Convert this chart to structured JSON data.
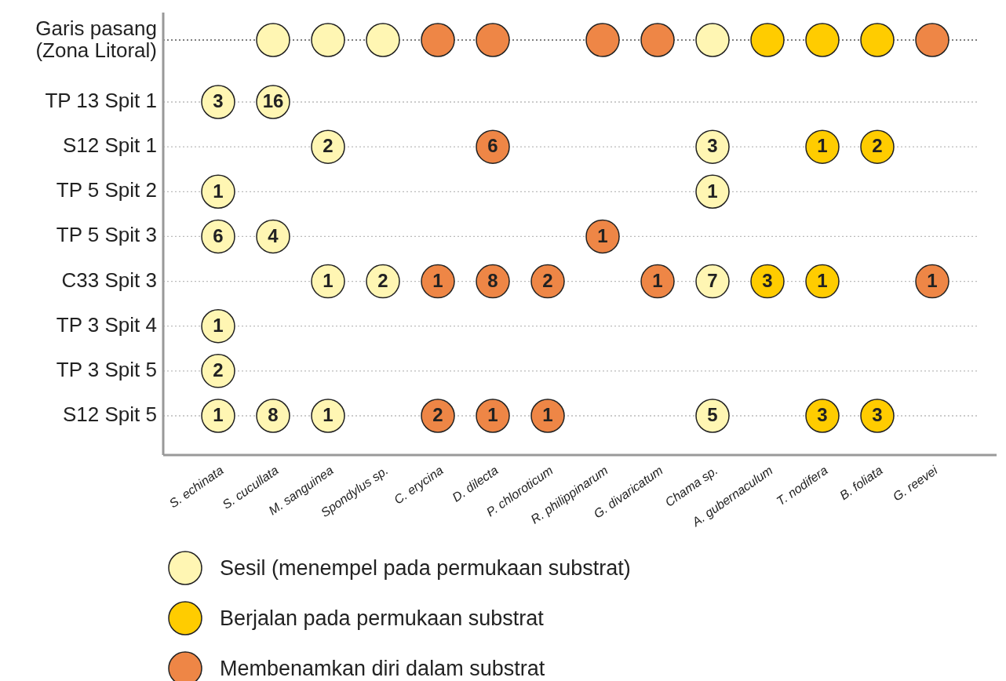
{
  "chart_data": {
    "type": "heatmap",
    "categories": [
      "S. echinata",
      "S. cucullata",
      "M. sanguinea",
      "Spondylus sp.",
      "C. erycina",
      "D. dilecta",
      "P. chloroticum",
      "R. philippinarum",
      "G. divaricatum",
      "Chama sp.",
      "A. gubernaculum",
      "T. nodifera",
      "B. foliata",
      "G. reevei"
    ],
    "y_categories": [
      "Garis pasang\n(Zona Litoral)",
      "TP 13 Spit 1",
      "S12 Spit 1",
      "TP 5 Spit 2",
      "TP 5 Spit 3",
      "C33 Spit 3",
      "TP 3 Spit 4",
      "TP 3 Spit 5",
      "S12 Spit 5"
    ],
    "cells": [
      [
        null,
        null,
        null,
        null,
        null,
        null,
        null,
        null,
        null,
        null,
        null,
        null,
        null,
        null
      ],
      [
        3,
        16,
        null,
        null,
        null,
        null,
        null,
        null,
        null,
        null,
        null,
        null,
        null,
        null
      ],
      [
        null,
        null,
        2,
        null,
        null,
        6,
        null,
        null,
        null,
        3,
        null,
        1,
        2,
        null
      ],
      [
        1,
        null,
        null,
        null,
        null,
        null,
        null,
        null,
        null,
        1,
        null,
        null,
        null,
        null
      ],
      [
        6,
        4,
        null,
        null,
        null,
        null,
        null,
        1,
        null,
        null,
        null,
        null,
        null,
        null
      ],
      [
        null,
        null,
        1,
        2,
        1,
        8,
        2,
        null,
        1,
        7,
        3,
        1,
        null,
        1
      ],
      [
        1,
        null,
        null,
        null,
        null,
        null,
        null,
        null,
        null,
        null,
        null,
        null,
        null,
        null
      ],
      [
        2,
        null,
        null,
        null,
        null,
        null,
        null,
        null,
        null,
        null,
        null,
        null,
        null,
        null
      ],
      [
        1,
        8,
        1,
        null,
        2,
        1,
        1,
        null,
        null,
        5,
        null,
        3,
        3,
        null
      ]
    ],
    "colors": [
      "#fff6b3",
      "#fff6b3",
      "#fff6b3",
      "#fff6b3",
      "#ee8646",
      "#ee8646",
      "#ee8646",
      "#ee8646",
      "#ee8646",
      "#fff6b3",
      "#ffcc00",
      "#ffcc00",
      "#ffcc00",
      "#ee8646"
    ],
    "series": [
      {
        "name": "Sesil (menempel pada permukaan substrat)",
        "color": "#fff6b3",
        "x": [
          "S. cucullata",
          "M. sanguinea",
          "Spondylus sp.",
          "Chama sp."
        ],
        "values": [
          null,
          null,
          null,
          null
        ]
      },
      {
        "name": "Berjalan pada permukaan substrat",
        "color": "#ffcc00",
        "x": [
          "A. gubernaculum",
          "T. nodifera",
          "B. foliata"
        ],
        "values": [
          null,
          null,
          null
        ]
      },
      {
        "name": "Membenamkan diri dalam substrat",
        "color": "#ee8646",
        "x": [
          "C. erycina",
          "D. dilecta",
          "R. philippinarum",
          "G. divaricatum",
          "G. reevei"
        ],
        "values": [
          null,
          null,
          null,
          null,
          null
        ]
      }
    ],
    "ref_lines": [
      {
        "axis": "y",
        "value": "Garis pasang\n(Zona Litoral)",
        "color": "#555555",
        "line_style": "dotted"
      }
    ],
    "grid": "y",
    "legend": "bottom",
    "data_labels": true
  }
}
